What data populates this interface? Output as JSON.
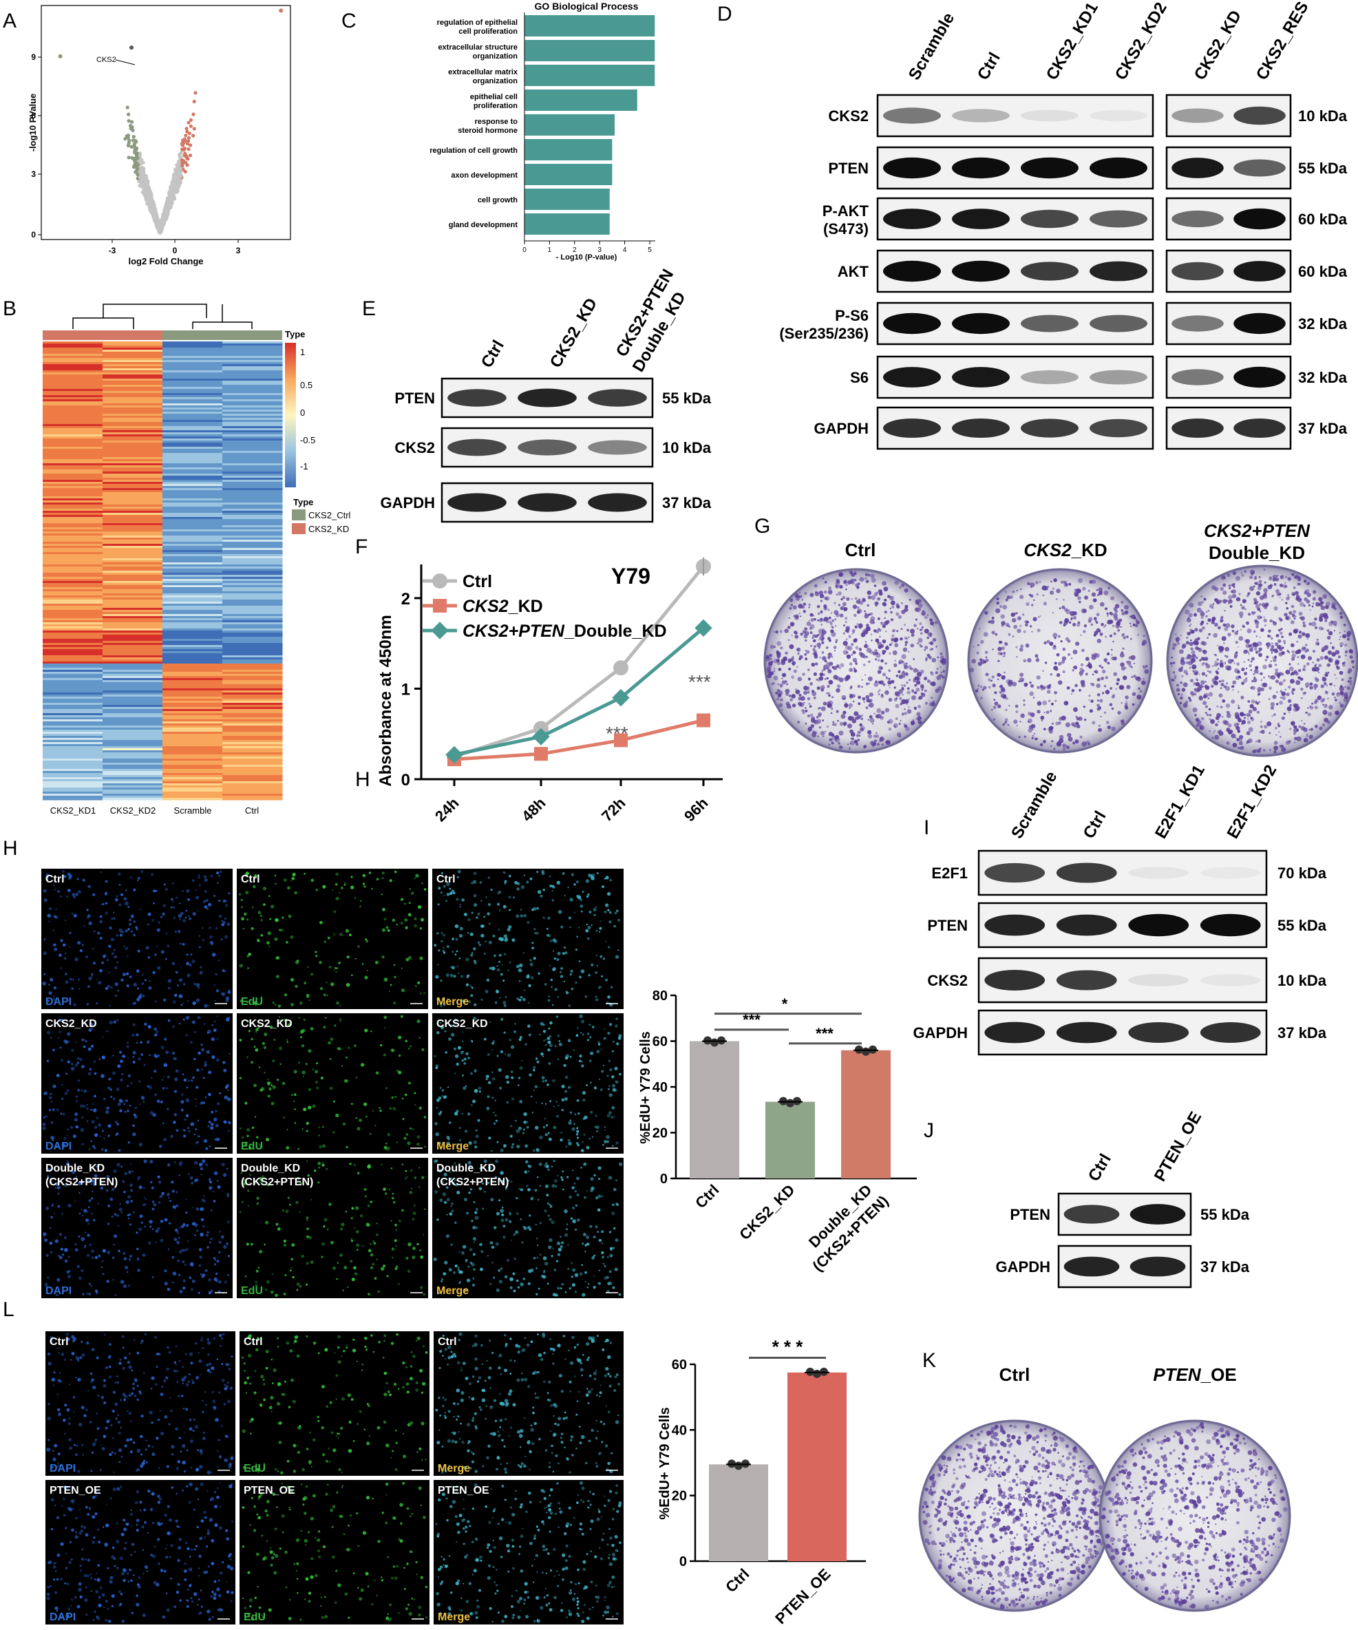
{
  "panels": {
    "A": {
      "label": "A",
      "xlabel": "log2 Fold Change",
      "ylabel": "-log10 PValue",
      "xticks": [
        "-3",
        "0",
        "3"
      ],
      "yticks": [
        "0",
        "3",
        "6",
        "9"
      ],
      "annotation": "CKS2"
    },
    "B": {
      "label": "B",
      "columns": [
        "CKS2_KD1",
        "CKS2_KD2",
        "Scramble",
        "Ctrl"
      ],
      "scale_title": "Type",
      "scale_ticks": [
        "1",
        "0.5",
        "0",
        "-0.5",
        "-1"
      ],
      "legend_title": "Type",
      "legend": [
        {
          "name": "CKS2_Ctrl",
          "color": "#8b9a7f"
        },
        {
          "name": "CKS2_KD",
          "color": "#d27865"
        }
      ]
    },
    "C": {
      "label": "C",
      "title": "GO Biological Process",
      "xlabel": "- Log10 (P-value)"
    },
    "D": {
      "label": "D",
      "lanes_left": [
        "Scramble",
        "Ctrl",
        "CKS2_KD1",
        "CKS2_KD2"
      ],
      "lanes_right": [
        "CKS2_KD",
        "CKS2_RES"
      ],
      "rows": [
        {
          "name": "CKS2",
          "kda": "10 kDa"
        },
        {
          "name": "PTEN",
          "kda": "55 kDa"
        },
        {
          "name": "P-AKT",
          "sub": "(S473)",
          "kda": "60 kDa"
        },
        {
          "name": "AKT",
          "kda": "60 kDa"
        },
        {
          "name": "P-S6",
          "sub": "(Ser235/236)",
          "kda": "32 kDa"
        },
        {
          "name": "S6",
          "kda": "32 kDa"
        },
        {
          "name": "GAPDH",
          "kda": "37 kDa"
        }
      ]
    },
    "E": {
      "label": "E",
      "lanes": [
        "Ctrl",
        "CKS2_KD",
        "CKS2+PTEN",
        "Double_KD"
      ],
      "rows": [
        {
          "name": "PTEN",
          "kda": "55 kDa"
        },
        {
          "name": "CKS2",
          "kda": "10 kDa"
        },
        {
          "name": "GAPDH",
          "kda": "37 kDa"
        }
      ]
    },
    "F": {
      "label": "F",
      "title": "Y79",
      "ylabel": "Absorbance at 450nm",
      "sig1": "***",
      "sig2": "***",
      "legend": [
        "Ctrl",
        "CKS2_KD",
        "CKS2+PTEN_Double_KD"
      ],
      "leg_italic": [
        "CKS2",
        "CKS2+PTEN"
      ],
      "leg_plain": [
        "_KD",
        "_Double_KD"
      ]
    },
    "G": {
      "label": "G",
      "plates": [
        "Ctrl",
        "_KD",
        "Double_KD"
      ],
      "plate_italic": [
        "CKS2",
        "CKS2+PTEN"
      ]
    },
    "H": {
      "label": "H",
      "stray_label": "H",
      "rows": [
        "Ctrl",
        "CKS2_KD",
        "Double_KD"
      ],
      "row3_sub": "(CKS2+PTEN)",
      "channels": [
        "DAPI",
        "EdU",
        "Merge"
      ],
      "ylabel": "%EdU+ Y79 Cells",
      "sig": [
        "*",
        "***",
        "***"
      ],
      "categories_x": [
        "Ctrl",
        "CKS2_KD",
        "Double_KD",
        "(CKS2+PTEN)"
      ]
    },
    "I": {
      "label": "I",
      "lanes": [
        "Scramble",
        "Ctrl",
        "E2F1_KD1",
        "E2F1_KD2"
      ],
      "rows": [
        {
          "name": "E2F1",
          "kda": "70 kDa"
        },
        {
          "name": "PTEN",
          "kda": "55 kDa"
        },
        {
          "name": "CKS2",
          "kda": "10 kDa"
        },
        {
          "name": "GAPDH",
          "kda": "37 kDa"
        }
      ]
    },
    "J": {
      "label": "J",
      "lanes": [
        "Ctrl",
        "PTEN_OE"
      ],
      "rows": [
        {
          "name": "PTEN",
          "kda": "55 kDa"
        },
        {
          "name": "GAPDH",
          "kda": "37 kDa"
        }
      ]
    },
    "K": {
      "label": "K",
      "plates": [
        "Ctrl",
        "_OE"
      ],
      "plate_italic": "PTEN"
    },
    "L": {
      "label": "L",
      "rows": [
        "Ctrl",
        "PTEN_OE"
      ],
      "channels": [
        "DAPI",
        "EdU",
        "Merge"
      ],
      "ylabel": "%EdU+ Y79 Cells",
      "sig": "* * *",
      "categories": [
        "Ctrl",
        "PTEN_OE"
      ]
    }
  },
  "chart_data": [
    {
      "type": "bar",
      "panel": "C",
      "title": "GO Biological Process",
      "orientation": "horizontal",
      "categories": [
        "regulation of epithelial cell proliferation",
        "extracellular structure organization",
        "extracellular matrix organization",
        "epithelial cell proliferation",
        "response to steroid hormone",
        "regulation of cell growth",
        "axon development",
        "cell growth",
        "gland development"
      ],
      "values": [
        5.2,
        5.2,
        5.2,
        4.5,
        3.6,
        3.5,
        3.5,
        3.4,
        3.4
      ],
      "xlabel": "- Log10 (P-value)",
      "xlim": [
        0,
        5.3
      ],
      "xticks": [
        "0",
        "1",
        "2",
        "3",
        "4",
        "5"
      ],
      "color": "#4a9a93"
    },
    {
      "type": "line",
      "panel": "F",
      "title": "Y79",
      "x": [
        "24h",
        "48h",
        "72h",
        "96h"
      ],
      "series": [
        {
          "name": "Ctrl",
          "values": [
            0.25,
            0.56,
            1.23,
            2.35
          ],
          "color": "#b9b9b9"
        },
        {
          "name": "CKS2_KD",
          "values": [
            0.22,
            0.28,
            0.43,
            0.65
          ],
          "color": "#e07b6a"
        },
        {
          "name": "CKS2+PTEN_Double_KD",
          "values": [
            0.27,
            0.47,
            0.9,
            1.67
          ],
          "color": "#4a9a93"
        }
      ],
      "ylabel": "Absorbance at 450nm",
      "ylim": [
        0,
        2.6
      ],
      "yticks": [
        "0",
        "1",
        "2"
      ]
    },
    {
      "type": "bar",
      "panel": "H",
      "categories": [
        "Ctrl",
        "CKS2_KD",
        "Double_KD (CKS2+PTEN)"
      ],
      "values": [
        60,
        33.5,
        56
      ],
      "colors": [
        "#b5b0af",
        "#8fa58a",
        "#d07a68"
      ],
      "ylabel": "%EdU+ Y79 Cells",
      "ylim": [
        0,
        80
      ],
      "yticks": [
        "0",
        "20",
        "40",
        "60",
        "80"
      ]
    },
    {
      "type": "bar",
      "panel": "L",
      "categories": [
        "Ctrl",
        "PTEN_OE"
      ],
      "values": [
        29.5,
        57.5
      ],
      "colors": [
        "#b5b0af",
        "#d9675e"
      ],
      "ylabel": "%EdU+ Y79 Cells",
      "ylim": [
        0,
        60
      ],
      "yticks": [
        "0",
        "20",
        "40",
        "60"
      ]
    },
    {
      "type": "scatter",
      "panel": "A",
      "xlabel": "log2 Fold Change",
      "ylabel": "-log10 PValue",
      "xlim": [
        -5,
        5.5
      ],
      "ylim": [
        0,
        10.5
      ],
      "colors": {
        "down": "#8b9a7f",
        "ns": "#c4c4c4",
        "up": "#d27865"
      }
    }
  ]
}
